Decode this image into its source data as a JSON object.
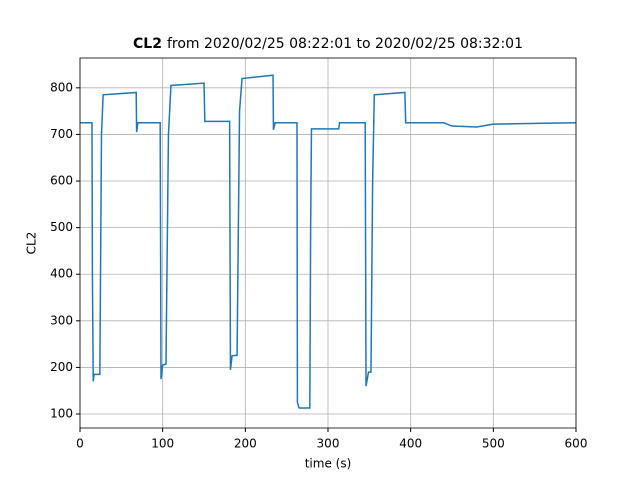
{
  "chart_data": {
    "type": "line",
    "title_parts": [
      "CL2",
      "from 2020/02/25 08:22:01 to 2020/02/25 08:32:01"
    ],
    "xlabel": "time (s)",
    "ylabel": "CL2",
    "xlim": [
      0,
      600
    ],
    "ylim": [
      70,
      864
    ],
    "xticks": [
      0,
      100,
      200,
      300,
      400,
      500,
      600
    ],
    "yticks": [
      100,
      200,
      300,
      400,
      500,
      600,
      700,
      800
    ],
    "grid": true,
    "series": [
      {
        "color": "#1f77b4",
        "x": [
          0,
          14.5,
          15,
          16,
          17,
          24,
          26,
          28,
          68,
          68.5,
          70,
          97,
          98,
          100,
          104,
          107,
          110,
          150,
          151,
          181,
          182,
          184,
          190,
          193,
          196,
          233.5,
          234,
          236,
          262.5,
          263,
          265,
          278,
          279,
          280,
          313,
          314,
          345,
          346,
          349,
          352,
          354,
          356,
          393,
          394,
          440,
          450,
          480,
          500,
          560,
          600
        ],
        "values": [
          725,
          725,
          400,
          170,
          185,
          185,
          700,
          785,
          790,
          705,
          725,
          725,
          175,
          205,
          207,
          700,
          805,
          810,
          728,
          728,
          195,
          225,
          226,
          750,
          820,
          827,
          710,
          725,
          725,
          125,
          113,
          113,
          500,
          712,
          712,
          725,
          725,
          160,
          190,
          190,
          600,
          785,
          790,
          725,
          725,
          718,
          716,
          722,
          724,
          725
        ]
      }
    ]
  }
}
